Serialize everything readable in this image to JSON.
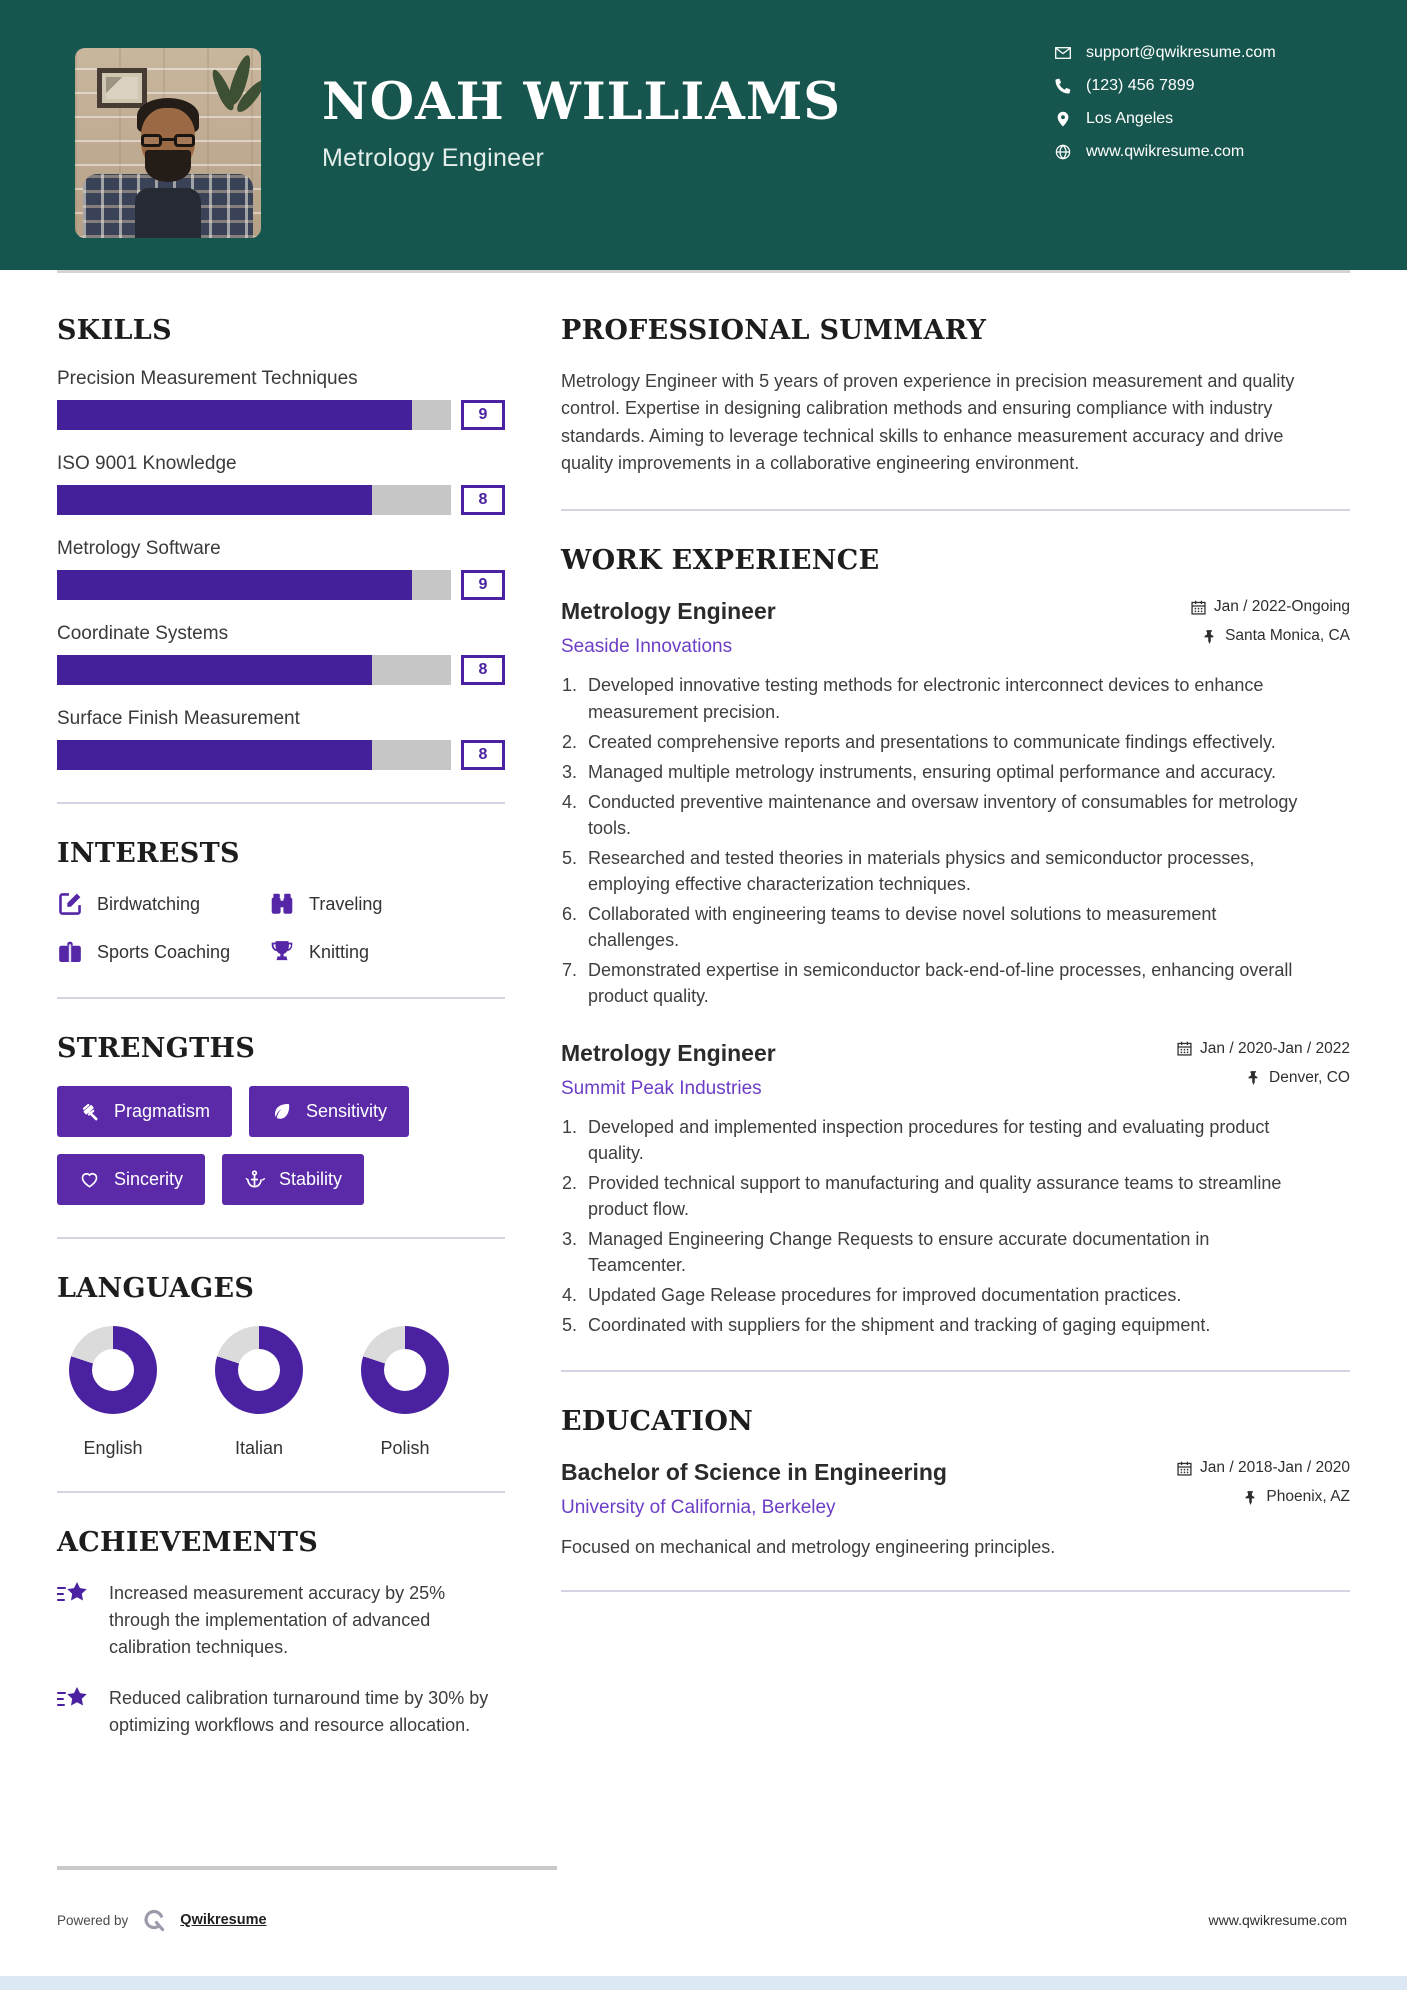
{
  "colors": {
    "teal": "#17564E",
    "bar": "#45209B",
    "chip": "#5B2AA9",
    "icon_purple": "#5526A5",
    "link_purple": "#6C3EC6",
    "donut": "#4A21A0",
    "donut_track": "#DBDBDB",
    "track_gray": "#C6C6C6"
  },
  "header": {
    "name": "NOAH WILLIAMS",
    "title": "Metrology Engineer",
    "contact": [
      {
        "icon": "email-icon",
        "text": "support@qwikresume.com"
      },
      {
        "icon": "phone-icon",
        "text": "(123) 456 7899"
      },
      {
        "icon": "location-icon",
        "text": "Los Angeles"
      },
      {
        "icon": "globe-icon",
        "text": "www.qwikresume.com"
      }
    ]
  },
  "sidebar": {
    "skills": {
      "heading": "SKILLS",
      "scale_max": 10,
      "items": [
        {
          "label": "Precision Measurement Techniques",
          "rating": 9
        },
        {
          "label": "ISO 9001 Knowledge",
          "rating": 8
        },
        {
          "label": "Metrology Software",
          "rating": 9
        },
        {
          "label": "Coordinate Systems",
          "rating": 8
        },
        {
          "label": "Surface Finish Measurement",
          "rating": 8
        }
      ]
    },
    "interests": {
      "heading": "INTERESTS",
      "items": [
        {
          "icon": "edit-icon",
          "label": "Birdwatching"
        },
        {
          "icon": "binoculars-icon",
          "label": "Traveling"
        },
        {
          "icon": "briefcase-icon",
          "label": "Sports Coaching"
        },
        {
          "icon": "trophy-icon",
          "label": "Knitting"
        }
      ]
    },
    "strengths": {
      "heading": "STRENGTHS",
      "items": [
        {
          "icon": "gavel-icon",
          "label": "Pragmatism"
        },
        {
          "icon": "leaf-icon",
          "label": "Sensitivity"
        },
        {
          "icon": "heart-icon",
          "label": "Sincerity"
        },
        {
          "icon": "anchor-icon",
          "label": "Stability"
        }
      ]
    },
    "languages": {
      "heading": "LANGUAGES",
      "items": [
        {
          "label": "English",
          "percent": 80
        },
        {
          "label": "Italian",
          "percent": 80
        },
        {
          "label": "Polish",
          "percent": 80
        }
      ]
    },
    "achievements": {
      "heading": "ACHIEVEMENTS",
      "items": [
        "Increased measurement accuracy by 25% through the implementation of advanced calibration techniques.",
        "Reduced calibration turnaround time by 30% by optimizing workflows and resource allocation."
      ]
    }
  },
  "main": {
    "summary": {
      "heading": "PROFESSIONAL SUMMARY",
      "text": "Metrology Engineer with 5 years of proven experience in precision measurement and quality control. Expertise in designing calibration methods and ensuring compliance with industry standards. Aiming to leverage technical skills to enhance measurement accuracy and drive quality improvements in a collaborative engineering environment."
    },
    "work": {
      "heading": "WORK EXPERIENCE",
      "jobs": [
        {
          "title": "Metrology Engineer",
          "company": "Seaside Innovations",
          "dates": "Jan / 2022-Ongoing",
          "location": "Santa Monica, CA",
          "bullets": [
            "Developed innovative testing methods for electronic interconnect devices to enhance measurement precision.",
            "Created comprehensive reports and presentations to communicate findings effectively.",
            "Managed multiple metrology instruments, ensuring optimal performance and accuracy.",
            "Conducted preventive maintenance and oversaw inventory of consumables for metrology tools.",
            "Researched and tested theories in materials physics and semiconductor processes, employing effective characterization techniques.",
            "Collaborated with engineering teams to devise novel solutions to measurement challenges.",
            "Demonstrated expertise in semiconductor back-end-of-line processes, enhancing overall product quality."
          ]
        },
        {
          "title": "Metrology Engineer",
          "company": "Summit Peak Industries",
          "dates": "Jan / 2020-Jan / 2022",
          "location": "Denver, CO",
          "bullets": [
            "Developed and implemented inspection procedures for testing and evaluating product quality.",
            "Provided technical support to manufacturing and quality assurance teams to streamline product flow.",
            "Managed Engineering Change Requests to ensure accurate documentation in Teamcenter.",
            "Updated Gage Release procedures for improved documentation practices.",
            "Coordinated with suppliers for the shipment and tracking of gaging equipment."
          ]
        }
      ]
    },
    "education": {
      "heading": "EDUCATION",
      "degree": "Bachelor of Science in Engineering",
      "school": "University of California, Berkeley",
      "dates": "Jan / 2018-Jan / 2020",
      "location": "Phoenix, AZ",
      "description": "Focused on mechanical and metrology engineering principles."
    }
  },
  "footer": {
    "powered_by": "Powered by",
    "brand": "Qwikresume",
    "website": "www.qwikresume.com"
  }
}
